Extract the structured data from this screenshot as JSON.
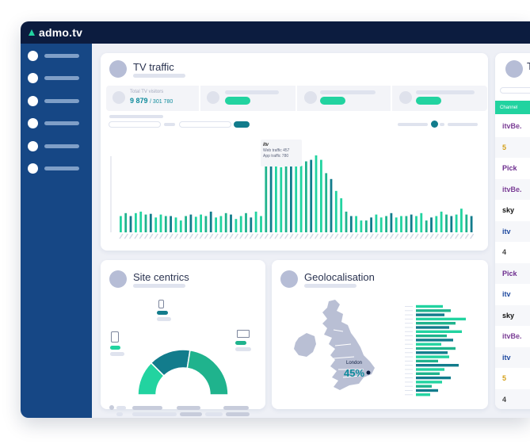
{
  "app": {
    "logo_text": "admo.tv"
  },
  "sidebar": {
    "items": [
      {
        "icon": "nav-dot"
      },
      {
        "icon": "nav-dot"
      },
      {
        "icon": "nav-dot"
      },
      {
        "icon": "nav-dot"
      },
      {
        "icon": "nav-dot"
      },
      {
        "icon": "nav-dot"
      }
    ]
  },
  "tv_traffic": {
    "title": "TV traffic",
    "kpi": {
      "label": "Total TV visitors",
      "value": "9 879",
      "total": "/ 301 780"
    },
    "tooltip": {
      "brand": "itv",
      "web_line": "Web traffic 457",
      "app_line": "App traffic 780"
    }
  },
  "site_centrics": {
    "title": "Site centrics"
  },
  "geo": {
    "title": "Geolocalisation",
    "city": "London",
    "percent": "45%"
  },
  "channels": {
    "title_initial": "T",
    "header": "Channel",
    "rows": [
      {
        "name": "itvBe.",
        "color": "#7c3f97"
      },
      {
        "name": "5",
        "color": "#d4a11a"
      },
      {
        "name": "Pick",
        "color": "#6c2c8e"
      },
      {
        "name": "itvBe.",
        "color": "#7c3f97"
      },
      {
        "name": "sky",
        "color": "#111111"
      },
      {
        "name": "itv",
        "color": "#1f4aa0"
      },
      {
        "name": "4",
        "color": "#444444"
      },
      {
        "name": "Pick",
        "color": "#6c2c8e"
      },
      {
        "name": "itv",
        "color": "#1f4aa0"
      },
      {
        "name": "sky",
        "color": "#111111"
      },
      {
        "name": "itvBe.",
        "color": "#7c3f97"
      },
      {
        "name": "itv",
        "color": "#1f4aa0"
      },
      {
        "name": "5",
        "color": "#d4a11a"
      },
      {
        "name": "4",
        "color": "#444444"
      }
    ]
  },
  "colors": {
    "navy": "#0c1c3f",
    "sidebar": "#164785",
    "green": "#22d3a0",
    "teal": "#0e8b9c",
    "mid_green": "#1fb38d"
  },
  "chart_data": {
    "type": "bar",
    "series": [
      {
        "values": [
          22,
          26,
          22,
          26,
          28,
          24,
          25,
          20,
          24,
          22,
          22,
          20,
          16,
          22,
          24,
          21,
          24,
          22,
          28,
          20,
          22,
          26,
          24,
          18,
          22,
          26,
          20,
          28,
          22,
          100,
          92,
          100,
          88,
          102,
          96,
          100,
          90,
          96,
          98,
          104,
          98,
          80,
          72,
          56,
          46,
          28,
          22,
          22,
          16,
          16,
          20,
          24,
          20,
          22,
          26,
          20,
          22,
          22,
          24,
          22,
          26,
          16,
          20,
          22,
          28,
          24,
          22,
          24,
          32,
          24,
          22
        ]
      }
    ]
  },
  "donut_data": {
    "segments": [
      {
        "value": 25
      },
      {
        "value": 30
      },
      {
        "value": 45
      }
    ]
  },
  "geo_bars": {
    "values": [
      34,
      44,
      36,
      63,
      50,
      42,
      58,
      39,
      47,
      32,
      50,
      40,
      42,
      28,
      54,
      36,
      30,
      44,
      33,
      20,
      28,
      18
    ]
  }
}
